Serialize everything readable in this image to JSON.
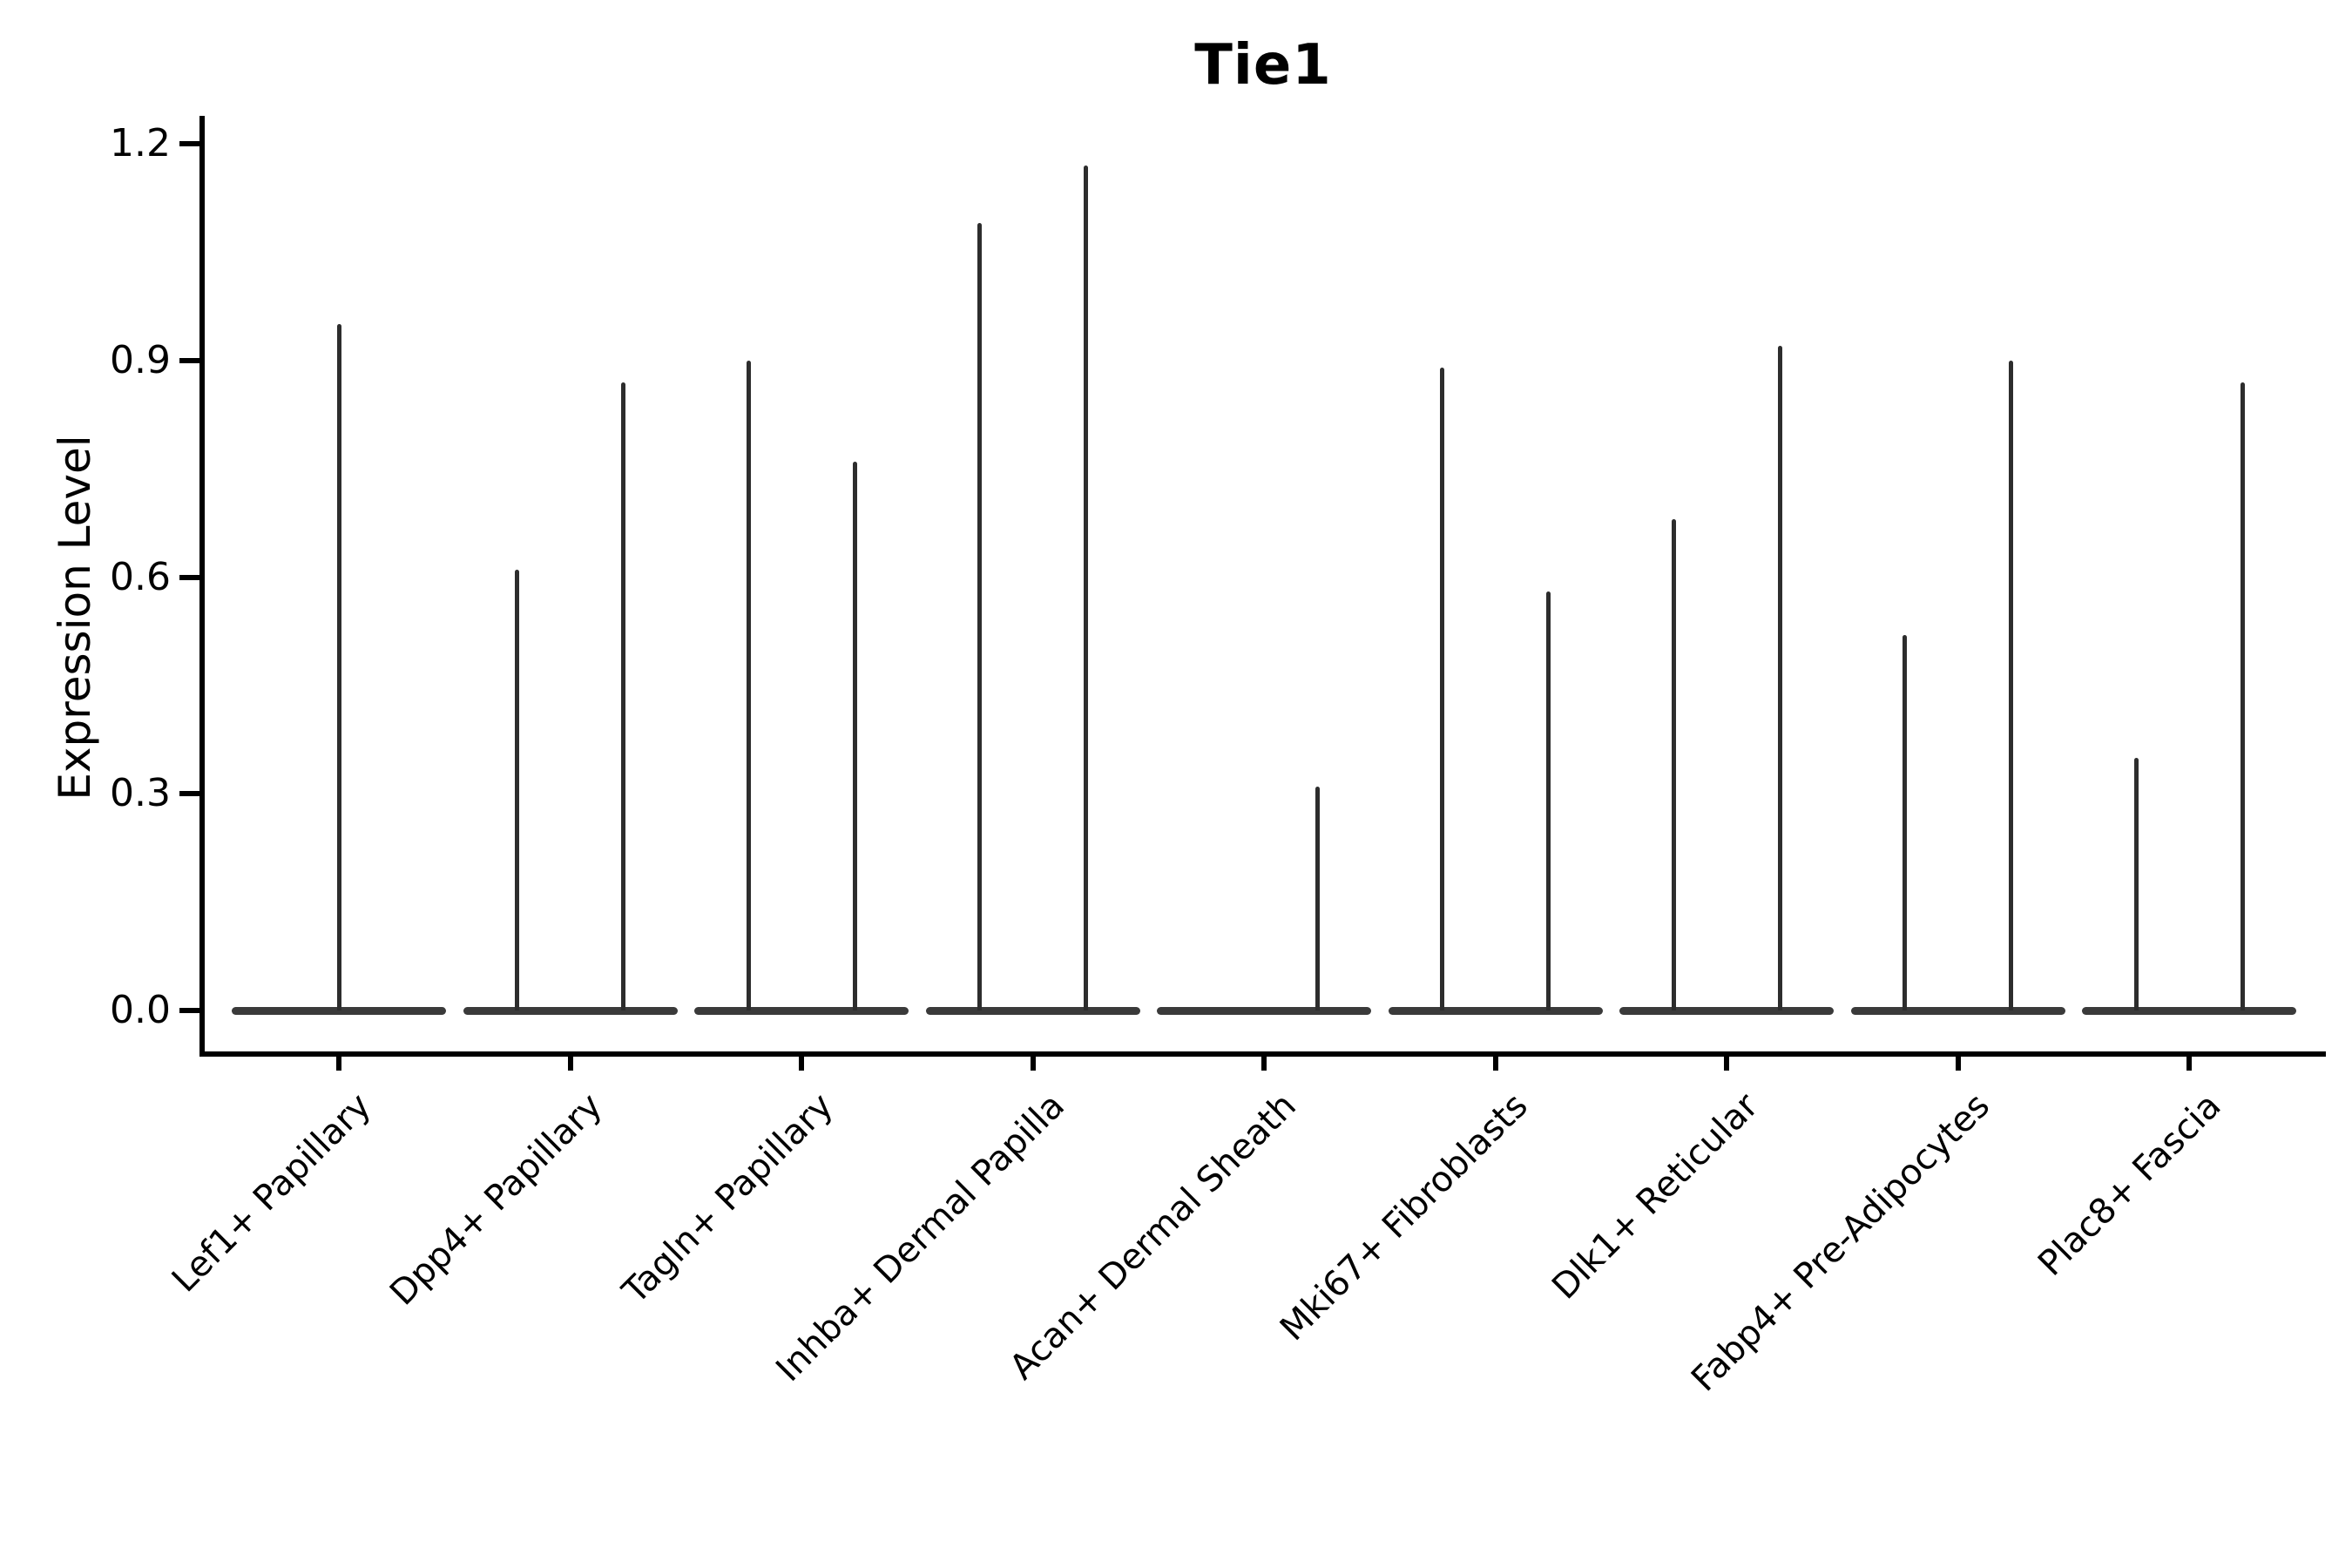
{
  "title": "Tie1",
  "y_axis": {
    "label": "Expression Level",
    "tick_labels": [
      "0.0",
      "0.3",
      "0.6",
      "0.9",
      "1.2"
    ]
  },
  "chart_data": {
    "type": "violin",
    "title": "Tie1",
    "xlabel": "",
    "ylabel": "Expression Level",
    "ylim": [
      -0.06,
      1.24
    ],
    "yticks": [
      0.0,
      0.3,
      0.6,
      0.9,
      1.2
    ],
    "grid": false,
    "legend_position": "none",
    "description": "Violin plot of Tie1 expression per fibroblast cluster; each category shows a flat near-zero density base with thin spikes reaching the maximum expression of each violin",
    "categories": [
      "Lef1+ Papillary",
      "Dpp4+ Papillary",
      "Tagln+ Papillary",
      "Inhba+ Dermal Papilla",
      "Acan+ Dermal Sheath",
      "Mki67+ Fibroblasts",
      "Dlk1+ Reticular",
      "Fabp4+ Pre-Adipocytes",
      "Plac8+ Fascia"
    ],
    "series": [
      {
        "category": "Lef1+ Papillary",
        "violins": [
          {
            "position": "center",
            "peak": 0.95
          }
        ]
      },
      {
        "category": "Dpp4+ Papillary",
        "violins": [
          {
            "position": "left",
            "peak": 0.61
          },
          {
            "position": "right",
            "peak": 0.87
          }
        ]
      },
      {
        "category": "Tagln+ Papillary",
        "violins": [
          {
            "position": "left",
            "peak": 0.9
          },
          {
            "position": "right",
            "peak": 0.76
          }
        ]
      },
      {
        "category": "Inhba+ Dermal Papilla",
        "violins": [
          {
            "position": "left",
            "peak": 1.09
          },
          {
            "position": "right",
            "peak": 1.17
          }
        ]
      },
      {
        "category": "Acan+ Dermal Sheath",
        "violins": [
          {
            "position": "right",
            "peak": 0.31
          }
        ]
      },
      {
        "category": "Mki67+ Fibroblasts",
        "violins": [
          {
            "position": "left",
            "peak": 0.89
          },
          {
            "position": "right",
            "peak": 0.58
          }
        ]
      },
      {
        "category": "Dlk1+ Reticular",
        "violins": [
          {
            "position": "left",
            "peak": 0.68
          },
          {
            "position": "right",
            "peak": 0.92
          }
        ]
      },
      {
        "category": "Fabp4+ Pre-Adipocytes",
        "violins": [
          {
            "position": "left",
            "peak": 0.52
          },
          {
            "position": "right",
            "peak": 0.9
          }
        ]
      },
      {
        "category": "Plac8+ Fascia",
        "violins": [
          {
            "position": "left",
            "peak": 0.35
          },
          {
            "position": "right",
            "peak": 0.87
          }
        ]
      }
    ],
    "style": {
      "stem_color": "#2d2d2d",
      "base_color": "#3a3a3a",
      "axis_color": "#000000",
      "background_color": "#ffffff"
    }
  }
}
